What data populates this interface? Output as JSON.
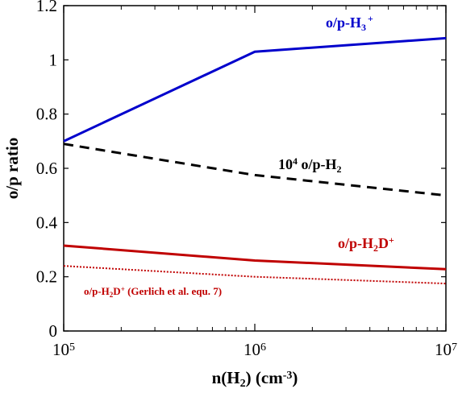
{
  "chart_data": {
    "type": "line",
    "xscale": "log",
    "x": [
      100000,
      1000000,
      10000000
    ],
    "xticks": [
      100000,
      1000000,
      10000000
    ],
    "xtick_labels": [
      {
        "base": "10",
        "exp": "5"
      },
      {
        "base": "10",
        "exp": "6"
      },
      {
        "base": "10",
        "exp": "7"
      }
    ],
    "xlabel": {
      "pre": "n(H",
      "sub": "2",
      "mid": ")  (cm",
      "sup": "-3",
      "post": ")"
    },
    "ylabel": "o/p ratio",
    "ylim": [
      0,
      1.2
    ],
    "yticks": [
      0,
      0.2,
      0.4,
      0.6,
      0.8,
      1,
      1.2
    ],
    "ytick_labels": [
      "0",
      "0.2",
      "0.4",
      "0.6",
      "0.8",
      "1",
      "1.2"
    ],
    "grid": false,
    "series": [
      {
        "key": "h3",
        "values": [
          0.7,
          1.03,
          1.08
        ],
        "color": "#0000cc",
        "style": "solid",
        "label": {
          "pre": "o/p-H",
          "sub": "3",
          "sup": "+",
          "post": ""
        }
      },
      {
        "key": "h2",
        "values": [
          0.69,
          0.575,
          0.5
        ],
        "color": "#000000",
        "style": "dashed",
        "label": {
          "pre": "10",
          "sup": "4",
          "mid": " o/p-H",
          "sub": "2"
        }
      },
      {
        "key": "h2d",
        "values": [
          0.315,
          0.26,
          0.228
        ],
        "color": "#c00000",
        "style": "solid",
        "label": {
          "pre": "o/p-H",
          "sub": "2",
          "mid": "D",
          "sup": "+"
        }
      },
      {
        "key": "gerlich",
        "values": [
          0.24,
          0.2,
          0.175
        ],
        "color": "#c00000",
        "style": "dotted",
        "label": {
          "pre": "o/p-H",
          "sub": "2",
          "mid": "D",
          "sup": "+",
          "post": "  (Gerlich et al. equ. 7)"
        }
      }
    ]
  }
}
